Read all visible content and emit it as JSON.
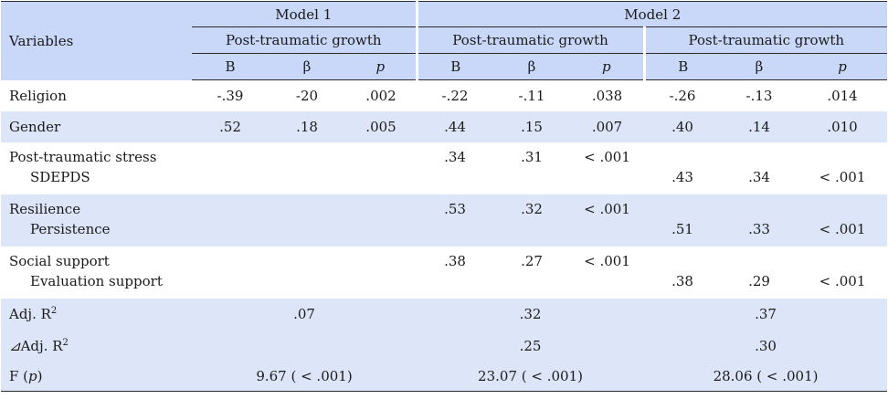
{
  "header": {
    "variables": "Variables",
    "model1": "Model 1",
    "model2": "Model 2",
    "growth": "Post-traumatic growth",
    "B": "B",
    "beta": "β",
    "p": "p"
  },
  "rows": {
    "religion": {
      "label": "Religion",
      "m1": [
        "-.39",
        "-20",
        ".002"
      ],
      "m2a": [
        "-.22",
        "-.11",
        ".038"
      ],
      "m2b": [
        "-.26",
        "-.13",
        ".014"
      ]
    },
    "gender": {
      "label": "Gender",
      "m1": [
        ".52",
        ".18",
        ".005"
      ],
      "m2a": [
        ".44",
        ".15",
        ".007"
      ],
      "m2b": [
        ".40",
        ".14",
        ".010"
      ]
    },
    "stress": {
      "label": "Post-traumatic stress",
      "sub": "SDEPDS",
      "m2a": [
        ".34",
        ".31",
        "< .001"
      ],
      "m2b": [
        ".43",
        ".34",
        "< .001"
      ]
    },
    "resilience": {
      "label": "Resilience",
      "sub": "Persistence",
      "m2a": [
        ".53",
        ".32",
        "< .001"
      ],
      "m2b": [
        ".51",
        ".33",
        "< .001"
      ]
    },
    "social": {
      "label": "Social support",
      "sub": "Evaluation support",
      "m2a": [
        ".38",
        ".27",
        "< .001"
      ],
      "m2b": [
        ".38",
        ".29",
        "< .001"
      ]
    }
  },
  "stats": {
    "adjr2_label": "Adj. R",
    "adjr2_sup": "2",
    "adjr2": [
      ".07",
      ".32",
      ".37"
    ],
    "dadjr2_prefix": "⊿",
    "dadjr2_label": "Adj. R",
    "dadjr2_sup": "2",
    "dadjr2": [
      ".25",
      ".30"
    ],
    "f_label_pre": "F (",
    "f_label_p": "p",
    "f_label_post": ")",
    "f": [
      "9.67 ( < .001)",
      "23.07 ( < .001)",
      "28.06 ( < .001)"
    ]
  }
}
